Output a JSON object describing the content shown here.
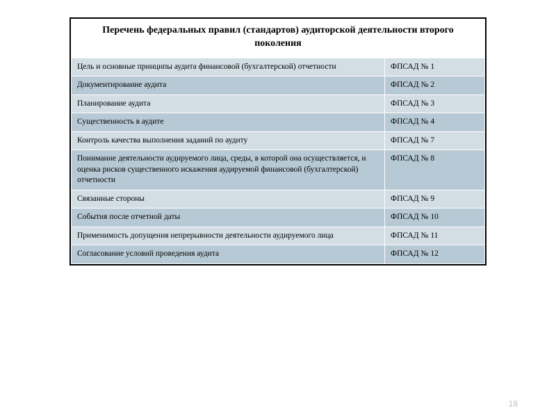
{
  "title": "Перечень федеральных правил (стандартов) аудиторской деятельности второго поколения",
  "colors": {
    "row_light": "#d2dde4",
    "row_dark": "#b7c9d4",
    "border": "#ffffff",
    "outer_border": "#000000",
    "text": "#000000",
    "page_num": "#bfbfbf"
  },
  "typography": {
    "title_fontsize": 14,
    "cell_fontsize": 11.5,
    "title_weight": "bold"
  },
  "rows": [
    {
      "desc": "Цель  и основные принципы аудита финансовой (бухгалтерской) отчетности",
      "code": "ФПСАД № 1",
      "shade": "light"
    },
    {
      "desc": "Документирование аудита",
      "code": "ФПСАД № 2",
      "shade": "dark"
    },
    {
      "desc": "Планирование аудита",
      "code": "ФПСАД № 3",
      "shade": "light"
    },
    {
      "desc": "Существенность в аудите",
      "code": "ФПСАД № 4",
      "shade": "dark"
    },
    {
      "desc": "Контроль качества выполнения заданий по аудиту",
      "code": "ФПСАД № 7",
      "shade": "light"
    },
    {
      "desc": "Понимание деятельности аудируемого лица, среды, в которой она осуществляется, и оценка рисков существенного искажения аудируемой финансовой (бухгалтерской) отчетности",
      "code": "ФПСАД № 8",
      "shade": "dark"
    },
    {
      "desc": "Связанные стороны",
      "code": "ФПСАД № 9",
      "shade": "light"
    },
    {
      "desc": "События после отчетной даты",
      "code": "ФПСАД № 10",
      "shade": "dark"
    },
    {
      "desc": "Применимость допущения непрерывности деятельности аудируемого лица",
      "code": "ФПСАД № 11",
      "shade": "light"
    },
    {
      "desc": "Согласование условий проведения аудита",
      "code": "ФПСАД № 12",
      "shade": "dark"
    }
  ],
  "page_number": "18"
}
